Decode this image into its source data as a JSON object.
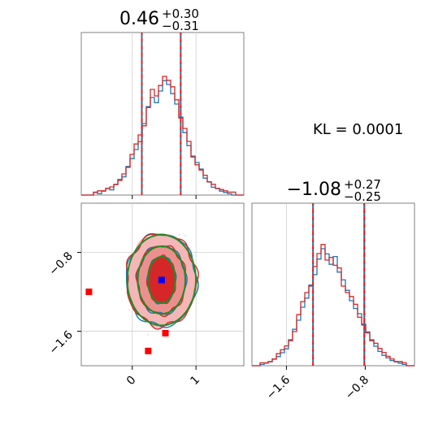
{
  "chart_data": {
    "type": "corner",
    "annotation": "KL = 0.0001",
    "colors": {
      "series_a": "#1f77b4",
      "series_b": "#d62728",
      "contour_fit": "#228b22",
      "marker_truth": "#0000ff",
      "marker_outlier": "#ff0000",
      "grid": "#d0d0d0"
    },
    "param1": {
      "title_value": "0.46",
      "title_plus": "+0.30",
      "title_minus": "−0.31",
      "quantiles": [
        0.15,
        0.46,
        0.76
      ],
      "dashed_lines": [
        0.15,
        0.76
      ],
      "xlim": [
        -0.8,
        1.75
      ],
      "ticks": [
        0,
        1
      ],
      "tick_labels": [
        "0",
        "1"
      ],
      "hist_a": [
        0,
        0,
        0,
        0.02,
        0.01,
        0.03,
        0.05,
        0.04,
        0.08,
        0.12,
        0.14,
        0.22,
        0.28,
        0.35,
        0.41,
        0.55,
        0.68,
        0.75,
        0.71,
        0.8,
        0.88,
        0.85,
        0.78,
        0.7,
        0.6,
        0.48,
        0.38,
        0.3,
        0.25,
        0.2,
        0.13,
        0.1,
        0.06,
        0.05,
        0.03,
        0.02,
        0.01,
        0,
        0,
        0
      ],
      "hist_b": [
        0,
        0,
        0,
        0.01,
        0.02,
        0.02,
        0.04,
        0.05,
        0.07,
        0.1,
        0.15,
        0.2,
        0.3,
        0.38,
        0.45,
        0.52,
        0.66,
        0.8,
        0.75,
        0.83,
        0.9,
        0.87,
        0.82,
        0.72,
        0.58,
        0.5,
        0.4,
        0.28,
        0.22,
        0.18,
        0.14,
        0.09,
        0.07,
        0.04,
        0.03,
        0.02,
        0.01,
        0.01,
        0,
        0
      ]
    },
    "param2": {
      "title_value": "−1.08",
      "title_plus": "+0.27",
      "title_minus": "−0.25",
      "quantiles": [
        -1.33,
        -1.08,
        -0.81
      ],
      "dashed_lines": [
        -1.33,
        -0.81
      ],
      "xlim": [
        -1.95,
        -0.3
      ],
      "ticks": [
        -1.6,
        -0.8
      ],
      "tick_labels": [
        "−1.6",
        "−0.8"
      ],
      "hist_a": [
        0,
        0,
        0.01,
        0.02,
        0.03,
        0.05,
        0.07,
        0.1,
        0.13,
        0.2,
        0.28,
        0.35,
        0.45,
        0.52,
        0.62,
        0.7,
        0.82,
        0.9,
        0.86,
        0.78,
        0.84,
        0.72,
        0.66,
        0.58,
        0.5,
        0.44,
        0.4,
        0.32,
        0.26,
        0.2,
        0.15,
        0.11,
        0.08,
        0.06,
        0.04,
        0.03,
        0.02,
        0.01,
        0,
        0
      ],
      "hist_b": [
        0,
        0,
        0.01,
        0.01,
        0.02,
        0.04,
        0.08,
        0.11,
        0.14,
        0.18,
        0.25,
        0.38,
        0.48,
        0.55,
        0.6,
        0.75,
        0.85,
        0.92,
        0.8,
        0.82,
        0.76,
        0.74,
        0.6,
        0.55,
        0.52,
        0.46,
        0.36,
        0.3,
        0.24,
        0.18,
        0.16,
        0.12,
        0.09,
        0.06,
        0.04,
        0.02,
        0.02,
        0.01,
        0,
        0
      ]
    },
    "joint": {
      "ylim": [
        -1.95,
        -0.3
      ],
      "yticks": [
        -1.6,
        -0.8
      ],
      "ytick_labels": [
        "−1.6",
        "−0.8"
      ],
      "center": [
        0.46,
        -1.08
      ],
      "truth_marker": [
        0.46,
        -1.08
      ],
      "outlier_markers": [
        [
          -0.68,
          -1.2
        ],
        [
          0.52,
          -1.62
        ],
        [
          0.25,
          -1.8
        ]
      ],
      "contour_levels": [
        {
          "sx": 0.55,
          "sy": 0.47
        },
        {
          "sx": 0.38,
          "sy": 0.35
        },
        {
          "sx": 0.22,
          "sy": 0.24
        }
      ]
    }
  }
}
